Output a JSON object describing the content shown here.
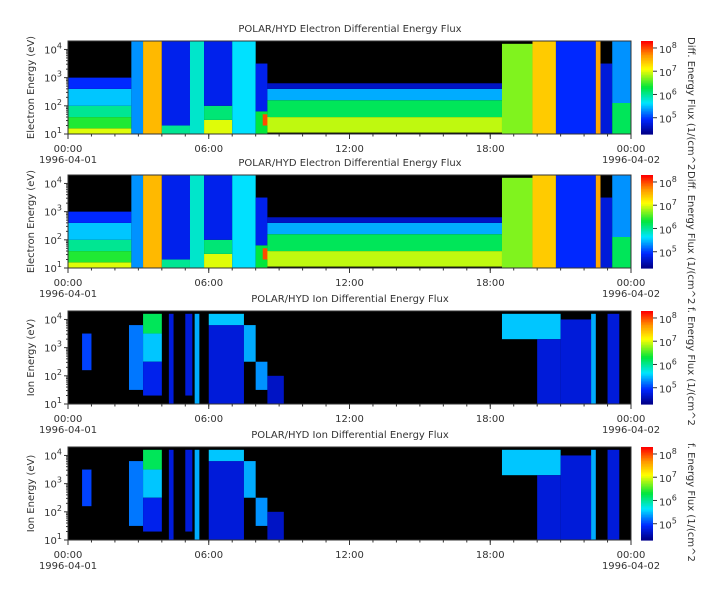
{
  "chart_data": [
    {
      "type": "heatmap",
      "title": "POLAR/HYD  Electron Differential Energy Flux",
      "ylabel": "Electron Energy (eV)",
      "colorbar_label": "Diff. Energy Flux (1/(cm^2",
      "x_ticks": [
        "00:00",
        "06:00",
        "12:00",
        "18:00",
        "00:00"
      ],
      "x_dates": [
        "1996-04-01",
        "1996-04-02"
      ],
      "xlim_hours": [
        0,
        24
      ],
      "ylog": true,
      "ylim_log10": [
        1,
        4.3
      ],
      "y_ticks_log10": [
        1,
        2,
        3,
        4
      ],
      "colorbar_log10": [
        4.3,
        8.3
      ],
      "colorbar_ticks_log10": [
        5,
        6,
        7,
        8
      ],
      "colormap": "rainbow (blue-cyan-green-yellow-red)",
      "cells": [
        [
          0,
          2.7,
          1,
          1.2,
          7.0
        ],
        [
          0,
          2.7,
          1.2,
          1.6,
          6.4
        ],
        [
          0,
          2.7,
          1.6,
          2.0,
          6.0
        ],
        [
          0,
          2.7,
          2.0,
          2.6,
          5.5
        ],
        [
          0,
          2.7,
          2.6,
          3.0,
          4.9
        ],
        [
          2.7,
          3.2,
          1,
          4.3,
          5.3
        ],
        [
          3.2,
          4.0,
          1,
          4.3,
          7.5
        ],
        [
          4.0,
          5.2,
          1.3,
          4.3,
          4.8
        ],
        [
          4.0,
          5.2,
          1,
          1.3,
          6.0
        ],
        [
          5.2,
          5.8,
          1,
          4.3,
          5.8
        ],
        [
          5.8,
          7.0,
          1,
          1.5,
          7.0
        ],
        [
          5.8,
          7.0,
          1.5,
          2.0,
          6.1
        ],
        [
          5.8,
          7.0,
          2.0,
          4.3,
          4.8
        ],
        [
          7.0,
          8.0,
          1,
          4.3,
          5.6
        ],
        [
          8.0,
          8.5,
          1.8,
          3.5,
          4.8
        ],
        [
          8.0,
          8.5,
          1,
          1.8,
          6.3
        ],
        [
          8.3,
          8.6,
          1.3,
          1.7,
          8.0
        ],
        [
          8.5,
          18.5,
          1.05,
          1.6,
          6.9
        ],
        [
          8.5,
          18.5,
          1.6,
          2.2,
          6.2
        ],
        [
          8.5,
          18.5,
          2.2,
          2.6,
          5.4
        ],
        [
          8.5,
          18.5,
          2.6,
          2.8,
          4.6
        ],
        [
          18.5,
          19.8,
          1,
          4.2,
          6.7
        ],
        [
          19.8,
          20.8,
          1,
          4.3,
          7.4
        ],
        [
          20.8,
          22.5,
          1,
          4.3,
          4.9
        ],
        [
          22.5,
          22.7,
          1,
          4.3,
          7.6
        ],
        [
          22.7,
          23.2,
          1,
          3.5,
          4.7
        ],
        [
          23.2,
          24,
          2.1,
          4.3,
          5.3
        ],
        [
          23.2,
          24,
          1,
          2.1,
          6.2
        ]
      ]
    },
    {
      "type": "heatmap",
      "title": "POLAR/HYD  Electron Differential Energy Flux",
      "ylabel": "Electron Energy (eV)",
      "colorbar_label": "Diff. Energy Flux (1/(cm^2",
      "x_ticks": [
        "00:00",
        "06:00",
        "12:00",
        "18:00",
        "00:00"
      ],
      "x_dates": [
        "1996-04-01",
        "1996-04-02"
      ],
      "xlim_hours": [
        0,
        24
      ],
      "ylog": true,
      "ylim_log10": [
        1,
        4.3
      ],
      "y_ticks_log10": [
        1,
        2,
        3,
        4
      ],
      "colorbar_log10": [
        4.3,
        8.3
      ],
      "colorbar_ticks_log10": [
        5,
        6,
        7,
        8
      ],
      "colormap": "rainbow (blue-cyan-green-yellow-red)",
      "cells": [
        [
          0,
          2.7,
          1,
          1.2,
          7.0
        ],
        [
          0,
          2.7,
          1.2,
          1.6,
          6.4
        ],
        [
          0,
          2.7,
          1.6,
          2.0,
          6.0
        ],
        [
          0,
          2.7,
          2.0,
          2.6,
          5.5
        ],
        [
          0,
          2.7,
          2.6,
          3.0,
          4.9
        ],
        [
          2.7,
          3.2,
          1,
          4.3,
          5.3
        ],
        [
          3.2,
          4.0,
          1,
          4.3,
          7.5
        ],
        [
          4.0,
          5.2,
          1.3,
          4.3,
          4.8
        ],
        [
          4.0,
          5.2,
          1,
          1.3,
          6.0
        ],
        [
          5.2,
          5.8,
          1,
          4.3,
          5.8
        ],
        [
          5.8,
          7.0,
          1,
          1.5,
          7.0
        ],
        [
          5.8,
          7.0,
          1.5,
          2.0,
          6.1
        ],
        [
          5.8,
          7.0,
          2.0,
          4.3,
          4.8
        ],
        [
          7.0,
          8.0,
          1,
          4.3,
          5.6
        ],
        [
          8.0,
          8.5,
          1.8,
          3.5,
          4.8
        ],
        [
          8.0,
          8.5,
          1,
          1.8,
          6.3
        ],
        [
          8.3,
          8.6,
          1.3,
          1.7,
          8.0
        ],
        [
          8.5,
          18.5,
          1.05,
          1.6,
          6.9
        ],
        [
          8.5,
          18.5,
          1.6,
          2.2,
          6.2
        ],
        [
          8.5,
          18.5,
          2.2,
          2.6,
          5.4
        ],
        [
          8.5,
          18.5,
          2.6,
          2.8,
          4.6
        ],
        [
          18.5,
          19.8,
          1,
          4.2,
          6.7
        ],
        [
          19.8,
          20.8,
          1,
          4.3,
          7.4
        ],
        [
          20.8,
          22.5,
          1,
          4.3,
          4.9
        ],
        [
          22.5,
          22.7,
          1,
          4.3,
          7.6
        ],
        [
          22.7,
          23.2,
          1,
          3.5,
          4.7
        ],
        [
          23.2,
          24,
          2.1,
          4.3,
          5.3
        ],
        [
          23.2,
          24,
          1,
          2.1,
          6.2
        ]
      ]
    },
    {
      "type": "heatmap",
      "title": "POLAR/HYD  Ion Differential Energy Flux",
      "ylabel": "Ion Energy (eV)",
      "colorbar_label": "f. Energy Flux (1/(cm^2",
      "x_ticks": [
        "00:00",
        "06:00",
        "12:00",
        "18:00",
        "00:00"
      ],
      "x_dates": [
        "1996-04-01",
        "1996-04-02"
      ],
      "xlim_hours": [
        0,
        24
      ],
      "ylog": true,
      "ylim_log10": [
        1,
        4.3
      ],
      "y_ticks_log10": [
        1,
        2,
        3,
        4
      ],
      "colorbar_log10": [
        4.3,
        8.3
      ],
      "colorbar_ticks_log10": [
        5,
        6,
        7,
        8
      ],
      "colormap": "rainbow (blue-cyan-green-yellow-red)",
      "cells": [
        [
          0.6,
          1.0,
          2.2,
          3.5,
          5.0
        ],
        [
          2.6,
          3.2,
          1.5,
          3.8,
          5.2
        ],
        [
          3.2,
          4.0,
          3.5,
          4.2,
          6.2
        ],
        [
          3.2,
          4.0,
          2.5,
          3.5,
          5.5
        ],
        [
          3.2,
          4.0,
          1.3,
          2.5,
          4.8
        ],
        [
          4.3,
          4.5,
          1,
          4.2,
          4.7
        ],
        [
          5.0,
          5.3,
          1.3,
          4.2,
          4.7
        ],
        [
          5.4,
          5.6,
          1,
          4.2,
          5.4
        ],
        [
          6.0,
          7.5,
          1,
          3.8,
          4.7
        ],
        [
          6.0,
          7.5,
          3.8,
          4.2,
          5.5
        ],
        [
          7.5,
          8.0,
          2.5,
          3.8,
          5.4
        ],
        [
          8.0,
          8.5,
          1.5,
          2.5,
          5.3
        ],
        [
          8.5,
          9.2,
          1,
          2.0,
          4.6
        ],
        [
          18.5,
          21.0,
          3.3,
          4.2,
          5.5
        ],
        [
          20.0,
          21.0,
          1,
          3.3,
          4.7
        ],
        [
          21.0,
          22.3,
          1,
          4.0,
          4.7
        ],
        [
          22.3,
          22.5,
          1,
          4.2,
          5.4
        ],
        [
          23.0,
          23.5,
          1,
          4.2,
          4.7
        ]
      ]
    },
    {
      "type": "heatmap",
      "title": "POLAR/HYD  Ion Differential Energy Flux",
      "ylabel": "Ion Energy (eV)",
      "colorbar_label": "f. Energy Flux (1/(cm^2",
      "x_ticks": [
        "00:00",
        "06:00",
        "12:00",
        "18:00",
        "00:00"
      ],
      "x_dates": [
        "1996-04-01",
        "1996-04-02"
      ],
      "xlim_hours": [
        0,
        24
      ],
      "ylog": true,
      "ylim_log10": [
        1,
        4.3
      ],
      "y_ticks_log10": [
        1,
        2,
        3,
        4
      ],
      "colorbar_log10": [
        4.3,
        8.3
      ],
      "colorbar_ticks_log10": [
        5,
        6,
        7,
        8
      ],
      "colormap": "rainbow (blue-cyan-green-yellow-red)",
      "cells": [
        [
          0.6,
          1.0,
          2.2,
          3.5,
          5.0
        ],
        [
          2.6,
          3.2,
          1.5,
          3.8,
          5.2
        ],
        [
          3.2,
          4.0,
          3.5,
          4.2,
          6.2
        ],
        [
          3.2,
          4.0,
          2.5,
          3.5,
          5.5
        ],
        [
          3.2,
          4.0,
          1.3,
          2.5,
          4.8
        ],
        [
          4.3,
          4.5,
          1,
          4.2,
          4.7
        ],
        [
          5.0,
          5.3,
          1.3,
          4.2,
          4.7
        ],
        [
          5.4,
          5.6,
          1,
          4.2,
          5.4
        ],
        [
          6.0,
          7.5,
          1,
          3.8,
          4.7
        ],
        [
          6.0,
          7.5,
          3.8,
          4.2,
          5.5
        ],
        [
          7.5,
          8.0,
          2.5,
          3.8,
          5.4
        ],
        [
          8.0,
          8.5,
          1.5,
          2.5,
          5.3
        ],
        [
          8.5,
          9.2,
          1,
          2.0,
          4.6
        ],
        [
          18.5,
          21.0,
          3.3,
          4.2,
          5.5
        ],
        [
          20.0,
          21.0,
          1,
          3.3,
          4.7
        ],
        [
          21.0,
          22.3,
          1,
          4.0,
          4.7
        ],
        [
          22.3,
          22.5,
          1,
          4.2,
          5.4
        ],
        [
          23.0,
          23.5,
          1,
          4.2,
          4.7
        ]
      ]
    }
  ]
}
